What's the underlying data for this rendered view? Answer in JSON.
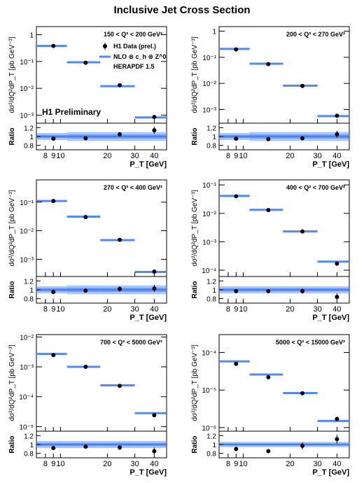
{
  "figure": {
    "title": "Inclusive Jet Cross Section",
    "legend": {
      "data_label": "H1 Data (prel.)",
      "theory_label": "NLO ⊗ c_h ⊗ Z^0",
      "pdf_label": "HERAPDF 1.5"
    },
    "preliminary_label": "H1 Preliminary",
    "colors": {
      "band": "#6699ff",
      "band_inner": "#3377ff",
      "line": "#4f8af5",
      "marker": "#000000"
    }
  },
  "chart_data": [
    {
      "type": "scatter",
      "bin_label": "150 < Q² < 200 GeV²",
      "xlabel": "P_T [GeV]",
      "ylabel": "dσ²/dQ²dP_T [pb GeV⁻³]",
      "ratio_label": "Ratio",
      "xlog": true,
      "xlim": [
        7,
        48
      ],
      "ylog": true,
      "ylim": [
        0.0005,
        2
      ],
      "ratio_ylim": [
        0.7,
        1.3
      ],
      "x_ticks": [
        "8",
        "9",
        "10",
        "20",
        "30",
        "40"
      ],
      "y_ticks": [
        "1",
        "10⁻¹",
        "10⁻²",
        "10⁻³"
      ],
      "ratio_ticks": [
        "1.2",
        "1",
        "0.8"
      ],
      "data_x": [
        9,
        14.5,
        24,
        40
      ],
      "data_y": [
        0.38,
        0.09,
        0.013,
        0.00085
      ],
      "nlo_bins": [
        [
          7,
          11,
          0.38
        ],
        [
          11,
          18,
          0.093
        ],
        [
          18,
          30,
          0.012
        ],
        [
          30,
          48,
          0.00082
        ]
      ],
      "ratio_y": [
        0.95,
        0.96,
        1.05,
        1.14
      ],
      "ratio_err": [
        0.03,
        0.03,
        0.05,
        0.08
      ],
      "band_halfwidth": [
        0.08,
        0.1,
        0.1,
        0.1
      ]
    },
    {
      "type": "scatter",
      "bin_label": "200 < Q² < 270 GeV²",
      "xlabel": "P_T [GeV]",
      "ylabel": "dσ²/dQ²dP_T [pb GeV⁻³]",
      "ratio_label": "Ratio",
      "xlog": true,
      "xlim": [
        7,
        48
      ],
      "ylog": true,
      "ylim": [
        0.0003,
        1.5
      ],
      "ratio_ylim": [
        0.7,
        1.3
      ],
      "x_ticks": [
        "8",
        "9",
        "10",
        "20",
        "30",
        "40"
      ],
      "y_ticks": [
        "1",
        "10⁻¹",
        "10⁻²",
        "10⁻³"
      ],
      "ratio_ticks": [
        "1.2",
        "1",
        "0.8"
      ],
      "data_x": [
        9,
        14.5,
        24,
        40
      ],
      "data_y": [
        0.2,
        0.055,
        0.008,
        0.00058
      ],
      "nlo_bins": [
        [
          7,
          11,
          0.21
        ],
        [
          11,
          18,
          0.057
        ],
        [
          18,
          30,
          0.0082
        ],
        [
          30,
          48,
          0.00056
        ]
      ],
      "ratio_y": [
        0.95,
        0.94,
        0.96,
        1.05
      ],
      "ratio_err": [
        0.03,
        0.03,
        0.05,
        0.08
      ],
      "band_halfwidth": [
        0.08,
        0.1,
        0.1,
        0.1
      ]
    },
    {
      "type": "scatter",
      "bin_label": "270 < Q² < 400 GeV²",
      "xlabel": "P_T [GeV]",
      "ylabel": "dσ²/dQ²dP_T [pb GeV⁻³]",
      "ratio_label": "Ratio",
      "xlog": true,
      "xlim": [
        7,
        48
      ],
      "ylog": true,
      "ylim": [
        0.00025,
        0.6
      ],
      "ratio_ylim": [
        0.7,
        1.3
      ],
      "x_ticks": [
        "8",
        "9",
        "10",
        "20",
        "30",
        "40"
      ],
      "y_ticks": [
        "10⁻¹",
        "10⁻²",
        "10⁻³"
      ],
      "ratio_ticks": [
        "1.2",
        "1",
        "0.8"
      ],
      "data_x": [
        9,
        14.5,
        24,
        40
      ],
      "data_y": [
        0.11,
        0.03,
        0.0048,
        0.00037
      ],
      "nlo_bins": [
        [
          7,
          11,
          0.11
        ],
        [
          11,
          18,
          0.031
        ],
        [
          18,
          30,
          0.0047
        ],
        [
          30,
          48,
          0.00036
        ]
      ],
      "ratio_y": [
        0.95,
        0.98,
        1.02,
        1.03
      ],
      "ratio_err": [
        0.03,
        0.03,
        0.06,
        0.08
      ],
      "band_halfwidth": [
        0.08,
        0.1,
        0.1,
        0.1
      ]
    },
    {
      "type": "scatter",
      "bin_label": "400 < Q² < 700 GeV²",
      "xlabel": "P_T [GeV]",
      "ylabel": "dσ²/dQ²dP_T [pb GeV⁻³]",
      "ratio_label": "Ratio",
      "xlog": true,
      "xlim": [
        7,
        48
      ],
      "ylog": true,
      "ylim": [
        6e-05,
        0.15
      ],
      "ratio_ylim": [
        0.7,
        1.3
      ],
      "x_ticks": [
        "8",
        "9",
        "10",
        "20",
        "30",
        "40"
      ],
      "y_ticks": [
        "10⁻¹",
        "10⁻²",
        "10⁻³",
        "10⁻⁴"
      ],
      "ratio_ticks": [
        "1.2",
        "1",
        "0.8"
      ],
      "data_x": [
        9,
        14.5,
        24,
        40
      ],
      "data_y": [
        0.04,
        0.013,
        0.0023,
        0.00017
      ],
      "nlo_bins": [
        [
          7,
          11,
          0.041
        ],
        [
          11,
          18,
          0.0133
        ],
        [
          18,
          30,
          0.0023
        ],
        [
          30,
          48,
          0.0002
        ]
      ],
      "ratio_y": [
        0.97,
        0.97,
        0.97,
        0.84
      ],
      "ratio_err": [
        0.03,
        0.03,
        0.06,
        0.08
      ],
      "band_halfwidth": [
        0.08,
        0.08,
        0.08,
        0.08
      ]
    },
    {
      "type": "scatter",
      "bin_label": "700 < Q² < 5000 GeV²",
      "xlabel": "P_T [GeV]",
      "ylabel": "dσ²/dQ²dP_T [pb GeV⁻³]",
      "ratio_label": "Ratio",
      "xlog": true,
      "xlim": [
        7,
        48
      ],
      "ylog": true,
      "ylim": [
        7e-06,
        0.012
      ],
      "ratio_ylim": [
        0.7,
        1.3
      ],
      "x_ticks": [
        "8",
        "9",
        "10",
        "20",
        "30",
        "40"
      ],
      "y_ticks": [
        "10⁻²",
        "10⁻³",
        "10⁻⁴",
        "10⁻⁵"
      ],
      "ratio_ticks": [
        "1.2",
        "1",
        "0.8"
      ],
      "data_x": [
        9,
        14.5,
        24,
        40
      ],
      "data_y": [
        0.0025,
        0.001,
        0.00023,
        2.4e-05
      ],
      "nlo_bins": [
        [
          7,
          11,
          0.0027
        ],
        [
          11,
          18,
          0.001
        ],
        [
          18,
          30,
          0.00024
        ],
        [
          30,
          48,
          2.8e-05
        ]
      ],
      "ratio_y": [
        0.92,
        0.95,
        0.93,
        0.85
      ],
      "ratio_err": [
        0.03,
        0.03,
        0.05,
        0.08
      ],
      "band_halfwidth": [
        0.08,
        0.08,
        0.08,
        0.08
      ]
    },
    {
      "type": "scatter",
      "bin_label": "5000 < Q² < 15000 GeV²",
      "xlabel": "P_T [GeV]",
      "ylabel": "dσ²/dQ²dP_T [pb GeV⁻³]",
      "ratio_label": "Ratio",
      "xlog": true,
      "xlim": [
        7,
        48
      ],
      "ylog": true,
      "ylim": [
        8e-07,
        0.0003
      ],
      "ratio_ylim": [
        0.7,
        1.3
      ],
      "x_ticks": [
        "8",
        "9",
        "10",
        "20",
        "30",
        "40"
      ],
      "y_ticks": [
        "10⁻⁴",
        "10⁻⁵",
        "10⁻⁶"
      ],
      "ratio_ticks": [
        "1.2",
        "1",
        "0.8"
      ],
      "data_x": [
        9,
        14.5,
        24,
        40
      ],
      "data_y": [
        5e-05,
        2.2e-05,
        8.2e-06,
        1.7e-06
      ],
      "nlo_bins": [
        [
          7,
          11,
          5.8e-05
        ],
        [
          11,
          18,
          2.6e-05
        ],
        [
          18,
          30,
          8.3e-06
        ],
        [
          30,
          48,
          1.5e-06
        ]
      ],
      "ratio_y": [
        0.9,
        0.85,
        0.97,
        1.12
      ],
      "ratio_err": [
        0.05,
        0.04,
        0.08,
        0.1
      ],
      "band_halfwidth": [
        0.06,
        0.06,
        0.06,
        0.06
      ]
    }
  ]
}
